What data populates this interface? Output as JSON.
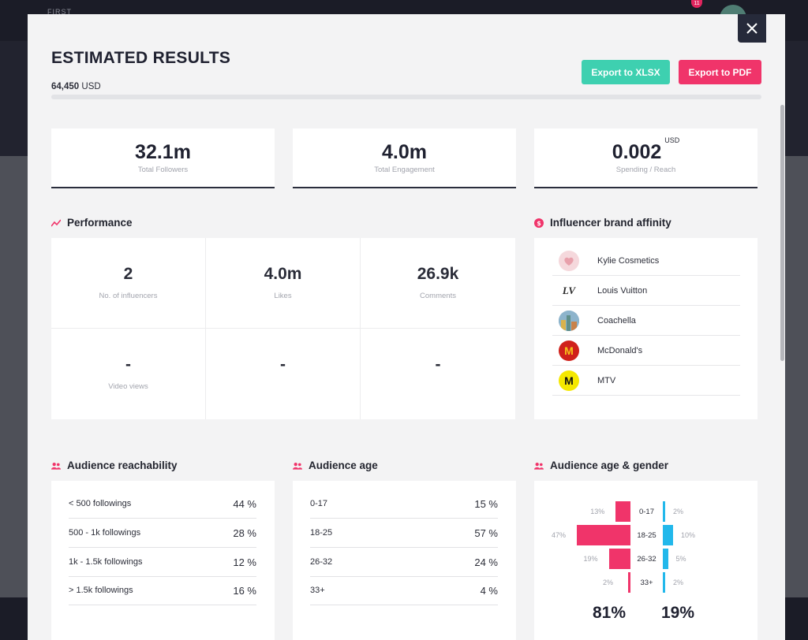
{
  "background": {
    "logo": "FIRST",
    "notification_count": "11"
  },
  "modal": {
    "title": "ESTIMATED RESULTS",
    "budget_value": "64,450",
    "budget_currency": "USD",
    "budget_fill": 0,
    "export_xlsx": "Export to XLSX",
    "export_pdf": "Export to PDF",
    "close_icon": "close-icon"
  },
  "stats": [
    {
      "value": "32.1m",
      "label": "Total Followers",
      "unit": ""
    },
    {
      "value": "4.0m",
      "label": "Total Engagement",
      "unit": ""
    },
    {
      "value": "0.002",
      "label": "Spending / Reach",
      "unit": "USD"
    }
  ],
  "performance": {
    "title": "Performance",
    "icon": "trend-icon",
    "cells": [
      {
        "value": "2",
        "label": "No. of influencers"
      },
      {
        "value": "4.0m",
        "label": "Likes"
      },
      {
        "value": "26.9k",
        "label": "Comments"
      },
      {
        "value": "-",
        "label": "Video views"
      },
      {
        "value": "-",
        "label": ""
      },
      {
        "value": "-",
        "label": ""
      }
    ]
  },
  "brand_affinity": {
    "title": "Influencer brand affinity",
    "icon": "dollar-icon",
    "brands": [
      {
        "name": "Kylie Cosmetics",
        "logo_text": ""
      },
      {
        "name": "Louis Vuitton",
        "logo_text": "LV"
      },
      {
        "name": "Coachella",
        "logo_text": ""
      },
      {
        "name": "McDonald's",
        "logo_text": "M"
      },
      {
        "name": "MTV",
        "logo_text": "M"
      }
    ]
  },
  "reachability": {
    "title": "Audience reachability",
    "icon": "people-icon",
    "rows": [
      {
        "label": "< 500 followings",
        "value": "44 %"
      },
      {
        "label": "500 - 1k followings",
        "value": "28 %"
      },
      {
        "label": "1k - 1.5k followings",
        "value": "12 %"
      },
      {
        "label": "> 1.5k followings",
        "value": "16 %"
      }
    ]
  },
  "audience_age": {
    "title": "Audience age",
    "icon": "people-icon",
    "rows": [
      {
        "label": "0-17",
        "value": "15 %"
      },
      {
        "label": "18-25",
        "value": "57 %"
      },
      {
        "label": "26-32",
        "value": "24 %"
      },
      {
        "label": "33+",
        "value": "4 %"
      }
    ]
  },
  "age_gender": {
    "title": "Audience age & gender",
    "icon": "people-icon",
    "female_total": "81%",
    "male_total": "19%",
    "colors": {
      "female": "#f0346a",
      "male": "#22b8eb"
    },
    "groups": [
      {
        "age": "0-17",
        "female": 13,
        "male": 2,
        "female_label": "13%",
        "male_label": "2%"
      },
      {
        "age": "18-25",
        "female": 47,
        "male": 10,
        "female_label": "47%",
        "male_label": "10%"
      },
      {
        "age": "26-32",
        "female": 19,
        "male": 5,
        "female_label": "19%",
        "male_label": "5%"
      },
      {
        "age": "33+",
        "female": 2,
        "male": 2,
        "female_label": "2%",
        "male_label": "2%"
      }
    ]
  }
}
